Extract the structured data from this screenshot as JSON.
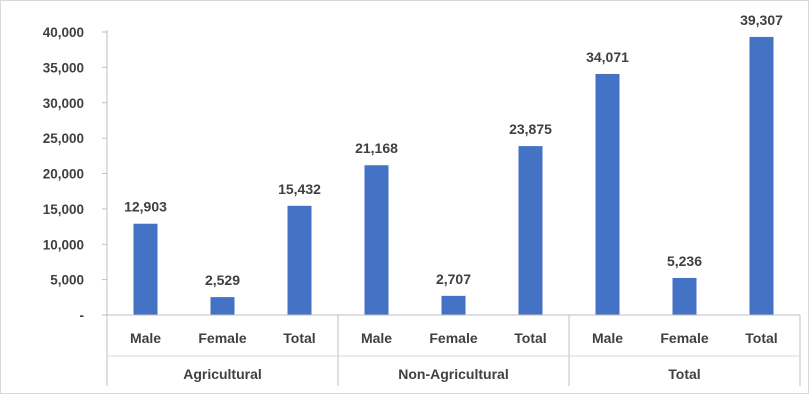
{
  "chart_data": {
    "type": "bar",
    "groups": [
      {
        "label": "Agricultural",
        "categories": [
          "Male",
          "Female",
          "Total"
        ],
        "values": [
          12903,
          2529,
          15432
        ],
        "value_labels": [
          "12,903",
          "2,529",
          "15,432"
        ]
      },
      {
        "label": "Non-Agricultural",
        "categories": [
          "Male",
          "Female",
          "Total"
        ],
        "values": [
          21168,
          2707,
          23875
        ],
        "value_labels": [
          "21,168",
          "2,707",
          "23,875"
        ]
      },
      {
        "label": "Total",
        "categories": [
          "Male",
          "Female",
          "Total"
        ],
        "values": [
          34071,
          5236,
          39307
        ],
        "value_labels": [
          "34,071",
          "5,236",
          "39,307"
        ]
      }
    ],
    "y_ticks": [
      {
        "value": 0,
        "label": "-"
      },
      {
        "value": 5000,
        "label": "5,000"
      },
      {
        "value": 10000,
        "label": "10,000"
      },
      {
        "value": 15000,
        "label": "15,000"
      },
      {
        "value": 20000,
        "label": "20,000"
      },
      {
        "value": 25000,
        "label": "25,000"
      },
      {
        "value": 30000,
        "label": "30,000"
      },
      {
        "value": 35000,
        "label": "35,000"
      },
      {
        "value": 40000,
        "label": "40,000"
      }
    ],
    "ylim": [
      0,
      40000
    ],
    "title": "",
    "xlabel": "",
    "ylabel": "",
    "grid": false,
    "legend": "none",
    "bar_color": "#4472C4"
  }
}
